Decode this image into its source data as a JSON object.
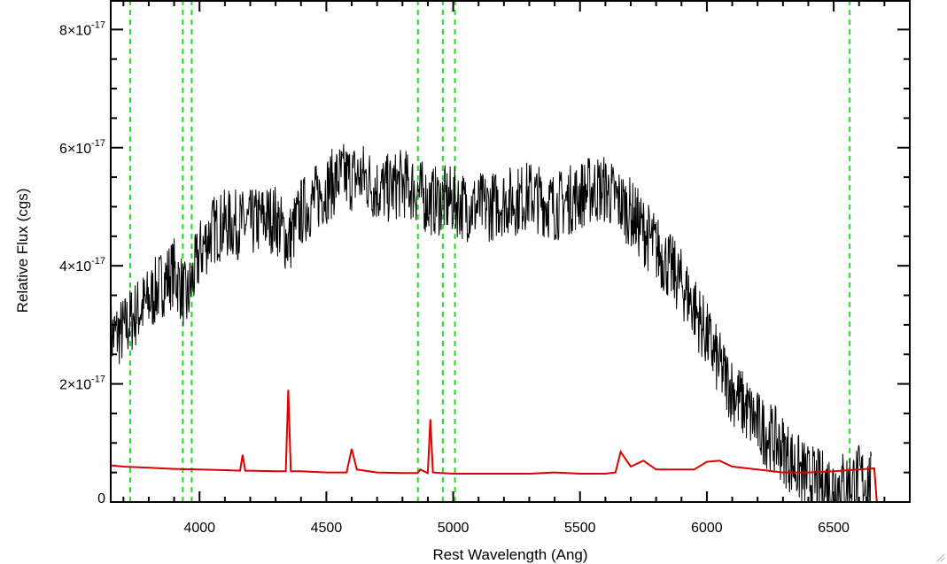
{
  "chart_data": {
    "type": "line",
    "xlabel": "Rest Wavelength (Ang)",
    "ylabel": "Relative Flux (cgs)",
    "xlim": [
      3650,
      6800
    ],
    "ylim": [
      0,
      8.5e-17
    ],
    "x_ticks": [
      4000,
      4500,
      5000,
      5500,
      6000,
      6500
    ],
    "x_tick_labels": [
      "4000",
      "4500",
      "5000",
      "5500",
      "6000",
      "6500"
    ],
    "y_ticks": [
      0,
      2e-17,
      4e-17,
      6e-17,
      8e-17
    ],
    "y_tick_labels": [
      {
        "mantissa": "0",
        "exponent": ""
      },
      {
        "mantissa": "2×10",
        "exponent": "-17"
      },
      {
        "mantissa": "4×10",
        "exponent": "-17"
      },
      {
        "mantissa": "6×10",
        "exponent": "-17"
      },
      {
        "mantissa": "8×10",
        "exponent": "-17"
      }
    ],
    "grid": false,
    "vertical_lines": {
      "color": "#22dd22",
      "style": "dashed",
      "x": [
        3727,
        3934,
        3969,
        4861,
        4959,
        5007,
        6563
      ]
    },
    "series": [
      {
        "color": "#000000",
        "x": [
          3650,
          3700,
          3750,
          3800,
          3850,
          3900,
          3950,
          4000,
          4050,
          4100,
          4150,
          4200,
          4250,
          4300,
          4350,
          4400,
          4450,
          4500,
          4550,
          4600,
          4650,
          4700,
          4750,
          4800,
          4850,
          4900,
          4950,
          5000,
          5050,
          5100,
          5150,
          5200,
          5250,
          5300,
          5350,
          5400,
          5450,
          5500,
          5550,
          5600,
          5650,
          5700,
          5750,
          5800,
          5850,
          5900,
          5950,
          6000,
          6050,
          6100,
          6150,
          6200,
          6250,
          6300,
          6350,
          6400,
          6450,
          6500,
          6550,
          6600,
          6650
        ],
        "y": [
          2.8e-17,
          2.9e-17,
          3.2e-17,
          3.4e-17,
          3.7e-17,
          3.9e-17,
          3.4e-17,
          4.2e-17,
          4.6e-17,
          4.7e-17,
          4.7e-17,
          4.7e-17,
          4.8e-17,
          4.8e-17,
          4.4e-17,
          4.9e-17,
          5.1e-17,
          5.3e-17,
          5.5e-17,
          5.5e-17,
          5.5e-17,
          5.3e-17,
          5.3e-17,
          5.4e-17,
          5.3e-17,
          5.1e-17,
          5.1e-17,
          5.1e-17,
          5e-17,
          5e-17,
          5e-17,
          5.1e-17,
          5.1e-17,
          5.2e-17,
          5.1e-17,
          5e-17,
          5.1e-17,
          5.2e-17,
          5.3e-17,
          5.3e-17,
          5.1e-17,
          4.9e-17,
          4.6e-17,
          4.3e-17,
          4e-17,
          3.7e-17,
          3.3e-17,
          2.8e-17,
          2.3e-17,
          1.9e-17,
          1.6e-17,
          1.3e-17,
          1.1e-17,
          9e-18,
          6e-18,
          4e-18,
          3e-18,
          3e-18,
          3e-18,
          4e-18,
          3e-18
        ]
      },
      {
        "color": "#dd0000",
        "x": [
          3650,
          3700,
          3800,
          3900,
          4000,
          4100,
          4160,
          4170,
          4180,
          4190,
          4200,
          4300,
          4340,
          4350,
          4360,
          4400,
          4500,
          4580,
          4600,
          4620,
          4700,
          4800,
          4860,
          4870,
          4900,
          4910,
          4920,
          5000,
          5100,
          5200,
          5300,
          5400,
          5500,
          5600,
          5640,
          5660,
          5700,
          5750,
          5800,
          5900,
          5950,
          6000,
          6050,
          6100,
          6200,
          6300,
          6400,
          6500,
          6600,
          6660,
          6670
        ],
        "y": [
          6.2e-18,
          6e-18,
          5.8e-18,
          5.6e-18,
          5.5e-18,
          5.4e-18,
          5.3e-18,
          8e-18,
          5.3e-18,
          5.3e-18,
          5.3e-18,
          5.2e-18,
          5.2e-18,
          1.9e-17,
          5.2e-18,
          5.2e-18,
          5e-18,
          5e-18,
          9e-18,
          5.5e-18,
          5e-18,
          4.9e-18,
          4.9e-18,
          5.5e-18,
          4.9e-18,
          1.4e-17,
          5e-18,
          4.8e-18,
          4.8e-18,
          4.8e-18,
          4.8e-18,
          5e-18,
          4.8e-18,
          4.8e-18,
          5e-18,
          8.5e-18,
          6e-18,
          7e-18,
          5.5e-18,
          5.5e-18,
          5.5e-18,
          6.8e-18,
          7e-18,
          6e-18,
          5.5e-18,
          5e-18,
          5e-18,
          5.2e-18,
          5.5e-18,
          5.7e-18,
          0
        ]
      }
    ]
  }
}
